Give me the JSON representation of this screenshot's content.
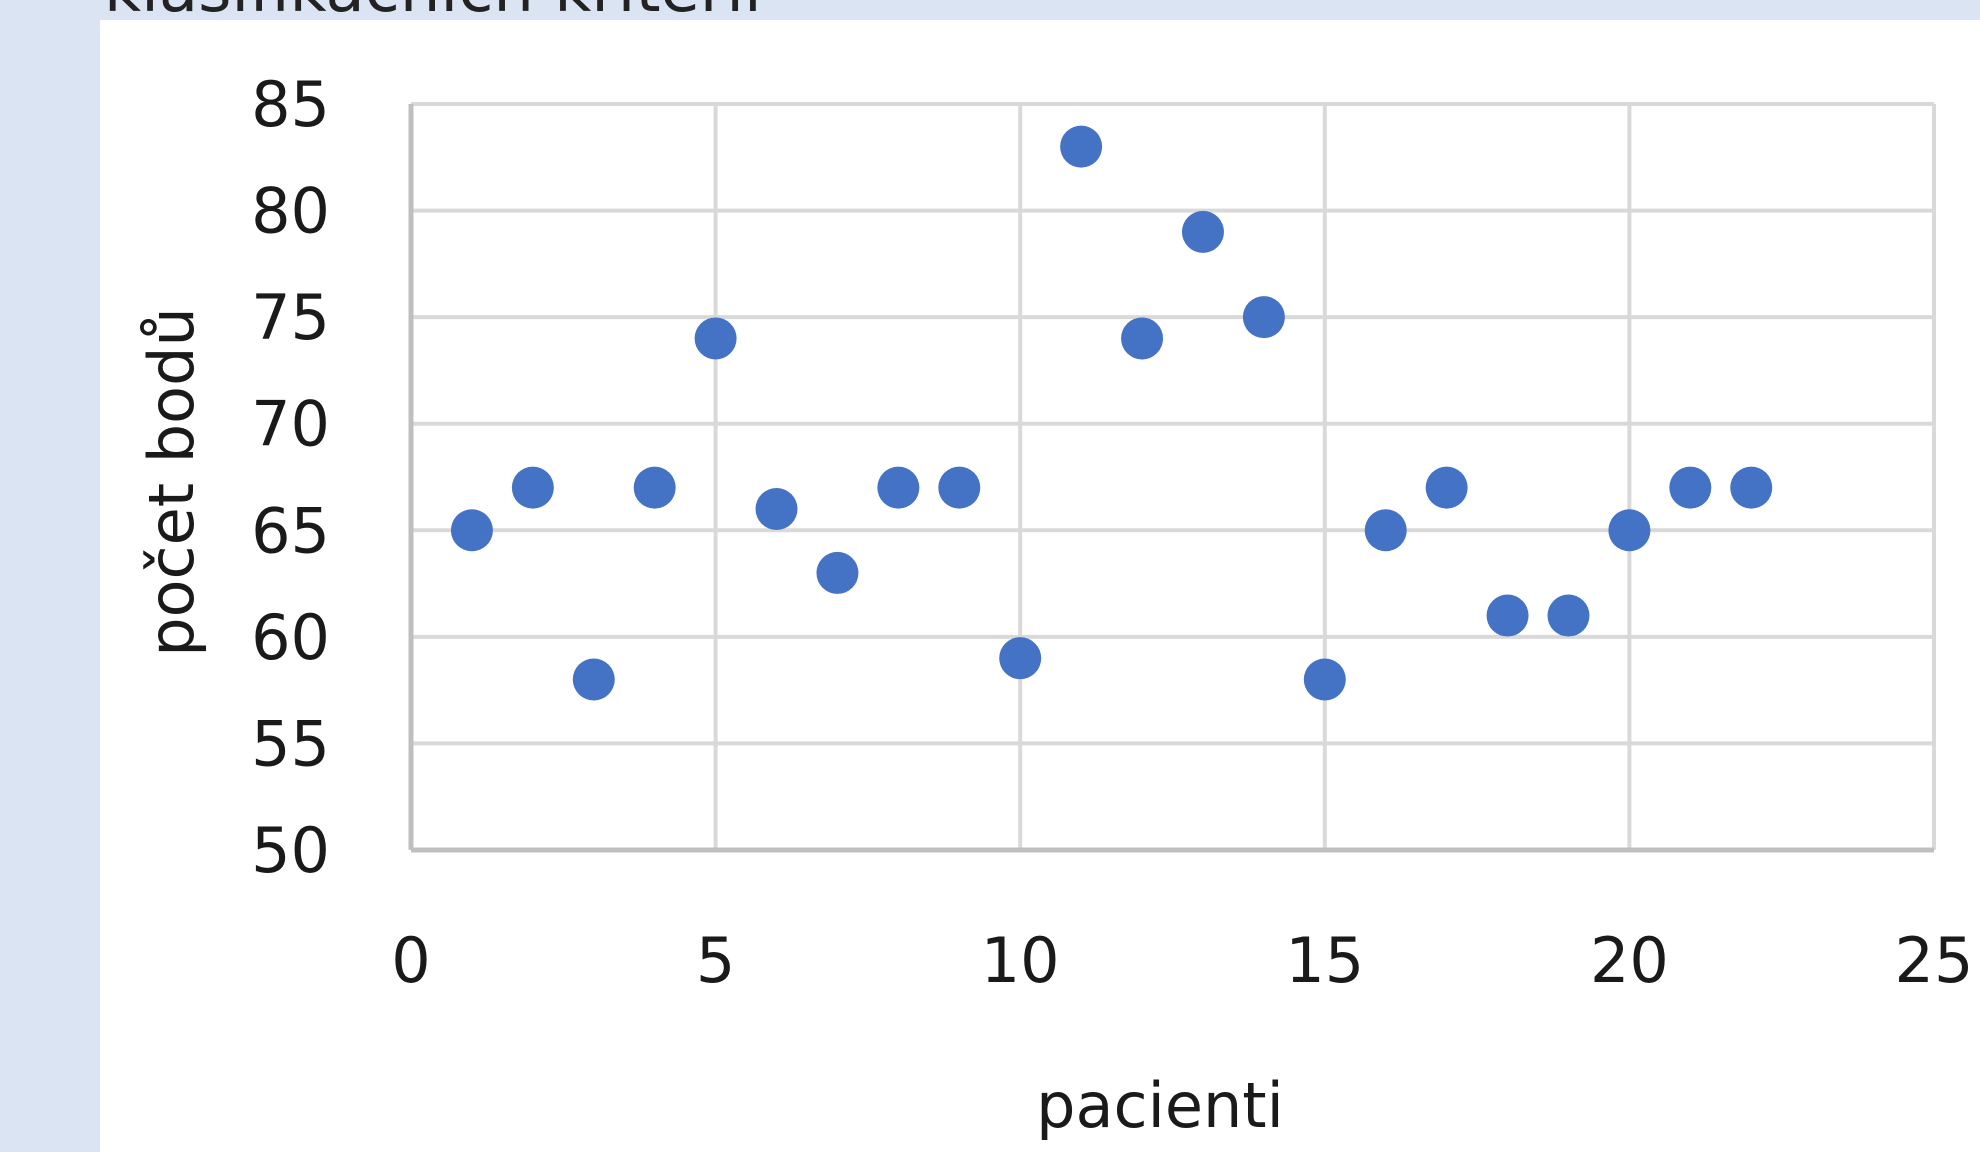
{
  "page": {
    "title_fragment": "klasifikačních kritérií"
  },
  "colors": {
    "background": "#dbe4f2",
    "panel": "#ffffff",
    "gridline": "#d9d9d9",
    "axis_line": "#bfbfbf",
    "marker": "#4472c4"
  },
  "chart_data": {
    "type": "scatter",
    "title": "",
    "xlabel": "pacienti",
    "ylabel": "počet bodů",
    "xlim": [
      0,
      25
    ],
    "ylim": [
      50,
      85
    ],
    "x_ticks": [
      0,
      5,
      10,
      15,
      20,
      25
    ],
    "y_ticks": [
      50,
      55,
      60,
      65,
      70,
      75,
      80,
      85
    ],
    "grid": true,
    "legend": "none",
    "series": [
      {
        "x": [
          1,
          2,
          3,
          4,
          5,
          6,
          7,
          8,
          9,
          10,
          11,
          12,
          13,
          14,
          15,
          16,
          17,
          18,
          19,
          20,
          21,
          22
        ],
        "y": [
          65,
          67,
          58,
          67,
          74,
          66,
          63,
          67,
          67,
          59,
          83,
          74,
          79,
          75,
          58,
          65,
          67,
          61,
          61,
          65,
          67,
          67
        ]
      }
    ]
  }
}
